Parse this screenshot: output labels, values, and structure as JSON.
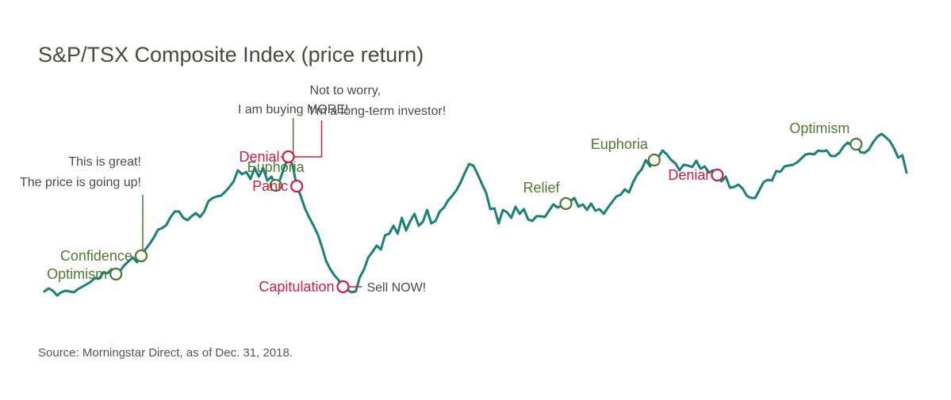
{
  "title": "S&P/TSX Composite Index (price return)",
  "source": "Source: Morningstar Direct, as of Dec. 31, 2018.",
  "colors": {
    "line": "#17817a",
    "positive": "#4d7a2f",
    "negative": "#cf1e45",
    "note": "#4a4a4a"
  },
  "chart_data": {
    "type": "line",
    "title": "S&P/TSX Composite Index (price return)",
    "xlabel": "",
    "ylabel": "",
    "grid": false,
    "legend": "none",
    "series": [
      {
        "name": "",
        "values": [
          12,
          16,
          13,
          7,
          11,
          13,
          12,
          11,
          15,
          18,
          21,
          24,
          29,
          28,
          36,
          35,
          40,
          34,
          38,
          45,
          50,
          55,
          49,
          57,
          65,
          72,
          80,
          90,
          92,
          96,
          106,
          113,
          113,
          105,
          102,
          107,
          111,
          106,
          113,
          126,
          130,
          132,
          133,
          138,
          144,
          151,
          165,
          160,
          163,
          154,
          168,
          157,
          168,
          152,
          157,
          146,
          153,
          168,
          182,
          172,
          145,
          132,
          116,
          105,
          95,
          84,
          68,
          50,
          40,
          32,
          26,
          18,
          14,
          11,
          12,
          30,
          40,
          55,
          62,
          70,
          65,
          83,
          85,
          95,
          85,
          105,
          89,
          101,
          110,
          95,
          100,
          115,
          98,
          101,
          113,
          118,
          127,
          133,
          140,
          150,
          162,
          173,
          171,
          160,
          148,
          137,
          116,
          117,
          98,
          115,
          112,
          105,
          119,
          110,
          116,
          103,
          101,
          107,
          107,
          106,
          114,
          122,
          118,
          120,
          123,
          126,
          130,
          119,
          122,
          115,
          123,
          114,
          116,
          110,
          118,
          125,
          132,
          134,
          141,
          137,
          150,
          160,
          166,
          178,
          170,
          178,
          182,
          190,
          185,
          178,
          174,
          165,
          172,
          171,
          169,
          177,
          167,
          170,
          162,
          165,
          159,
          151,
          157,
          143,
          144,
          147,
          142,
          133,
          130,
          130,
          140,
          150,
          153,
          152,
          164,
          163,
          170,
          171,
          172,
          175,
          180,
          185,
          186,
          185,
          190,
          189,
          190,
          183,
          183,
          187,
          195,
          200,
          196,
          198,
          188,
          187,
          191,
          200,
          207,
          211,
          207,
          202,
          193,
          181,
          184,
          162
        ]
      }
    ],
    "annotations": [
      {
        "index": 17,
        "label": "Optimism",
        "kind": "positive",
        "side": "left"
      },
      {
        "index": 23,
        "label": "Confidence",
        "kind": "positive",
        "side": "left",
        "note_lines": [
          "This is great!",
          "The price is going up!"
        ]
      },
      {
        "index": 55,
        "label": "Euphoria",
        "kind": "positive",
        "side": "above",
        "note_lines": [
          "I am buying MORE!"
        ]
      },
      {
        "index": 58,
        "label": "Denial",
        "kind": "negative",
        "side": "left",
        "note_lines": [
          "Not to worry,",
          "I’m a long-term investor!"
        ]
      },
      {
        "index": 60,
        "label": "Panic",
        "kind": "negative",
        "side": "left"
      },
      {
        "index": 71,
        "label": "Capitulation",
        "kind": "negative",
        "side": "left",
        "note_lines": [
          "Sell NOW!"
        ]
      },
      {
        "index": 124,
        "label": "Relief",
        "kind": "positive",
        "side": "above-left"
      },
      {
        "index": 145,
        "label": "Euphoria",
        "kind": "positive",
        "side": "above-left"
      },
      {
        "index": 160,
        "label": "Denial",
        "kind": "negative",
        "side": "left"
      },
      {
        "index": 193,
        "label": "Optimism",
        "kind": "positive",
        "side": "above-left"
      }
    ]
  }
}
